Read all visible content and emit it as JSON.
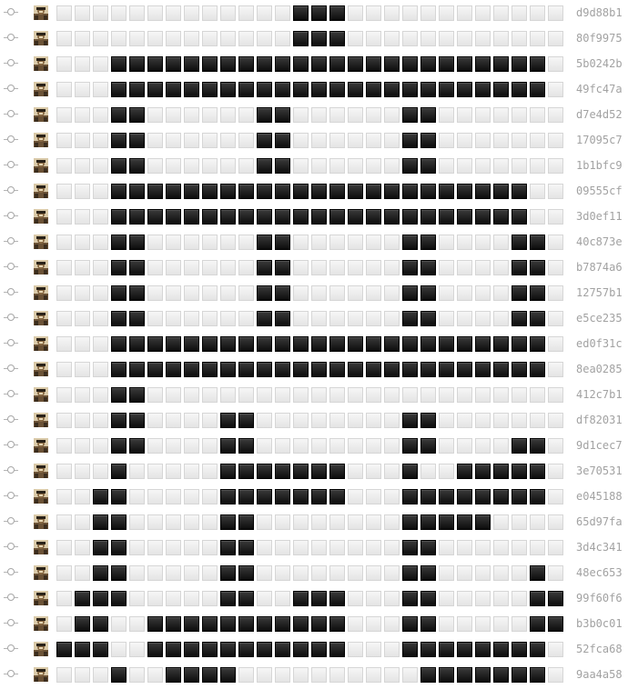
{
  "colors": {
    "filled_cell": "#111111",
    "empty_cell": "#ececec",
    "hash_text": "#a2a2a2",
    "graph_line": "#b4b4b4"
  },
  "icons": {
    "node": "commit-node-icon",
    "avatar": "author-avatar-icon"
  },
  "commits": [
    {
      "hash": "d9d88b1",
      "pattern": "0000000000000111000000000000"
    },
    {
      "hash": "80f9975",
      "pattern": "0000000000000111000000000000"
    },
    {
      "hash": "5b0242b",
      "pattern": "0001111111111111111111111110"
    },
    {
      "hash": "49fc47a",
      "pattern": "0001111111111111111111111110"
    },
    {
      "hash": "d7e4d52",
      "pattern": "0001100000011000000110000000"
    },
    {
      "hash": "17095c7",
      "pattern": "0001100000011000000110000000"
    },
    {
      "hash": "1b1bfc9",
      "pattern": "0001100000011000000110000000"
    },
    {
      "hash": "09555cf",
      "pattern": "0001111111111111111111111100"
    },
    {
      "hash": "3d0ef11",
      "pattern": "0001111111111111111111111100"
    },
    {
      "hash": "40c873e",
      "pattern": "0001100000011000000110000110"
    },
    {
      "hash": "b7874a6",
      "pattern": "0001100000011000000110000110"
    },
    {
      "hash": "12757b1",
      "pattern": "0001100000011000000110000110"
    },
    {
      "hash": "e5ce235",
      "pattern": "0001100000011000000110000110"
    },
    {
      "hash": "ed0f31c",
      "pattern": "0001111111111111111111111110"
    },
    {
      "hash": "8ea0285",
      "pattern": "0001111111111111111111111110"
    },
    {
      "hash": "412c7b1",
      "pattern": "0001100000000000000000000000"
    },
    {
      "hash": "df82031",
      "pattern": "0001100001100000000110000000"
    },
    {
      "hash": "9d1cec7",
      "pattern": "0001100001100000000110000110"
    },
    {
      "hash": "3e70531",
      "pattern": "0001000001111111000100111110"
    },
    {
      "hash": "e045188",
      "pattern": "0011000001111111000111111110"
    },
    {
      "hash": "65d97fa",
      "pattern": "0011000001100000000111110000"
    },
    {
      "hash": "3d4c341",
      "pattern": "0011000001100000000110000000"
    },
    {
      "hash": "48ec653",
      "pattern": "0011000001100000000110000010"
    },
    {
      "hash": "99f60f6",
      "pattern": "0111000001100111000110000011"
    },
    {
      "hash": "b3b0c01",
      "pattern": "0110011111111111000110000011"
    },
    {
      "hash": "52fca68",
      "pattern": "1110011111111111000111111110"
    },
    {
      "hash": "9aa4a58",
      "pattern": "0001001111000000000011111110"
    }
  ]
}
